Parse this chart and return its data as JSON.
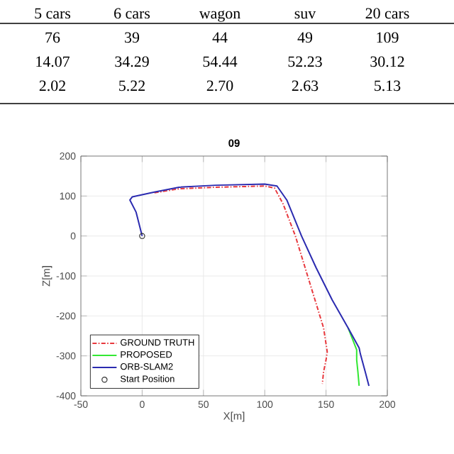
{
  "chart_data": {
    "type": "line",
    "title": "09",
    "xlabel": "X[m]",
    "ylabel": "Z[m]",
    "xlim": [
      -50,
      200
    ],
    "xticks": [
      -50,
      0,
      50,
      100,
      150,
      200
    ],
    "ylim": [
      -400,
      200
    ],
    "yticks": [
      -400,
      -300,
      -200,
      -100,
      0,
      100,
      200
    ],
    "grid": true,
    "legend": "bottom left",
    "series": [
      {
        "name": "GROUND TRUTH",
        "color": "#e8383d",
        "line_style": "dashed",
        "x": [
          10,
          30,
          60,
          100,
          108,
          115,
          125,
          135,
          143,
          148,
          151,
          150,
          148,
          147
        ],
        "values": [
          108,
          118,
          122,
          125,
          120,
          80,
          0,
          -100,
          -180,
          -230,
          -290,
          -310,
          -340,
          -370
        ]
      },
      {
        "name": "PROPOSED",
        "color": "#33e833",
        "line_style": "solid",
        "x": [
          168,
          175,
          175,
          176,
          177
        ],
        "values": [
          -230,
          -285,
          -310,
          -340,
          -375
        ]
      },
      {
        "name": "ORB-SLAM2",
        "color": "#2b2bb0",
        "line_style": "solid",
        "x": [
          0,
          -5,
          -10,
          -8,
          10,
          30,
          60,
          100,
          110,
          118,
          130,
          142,
          155,
          168,
          177,
          178,
          182,
          185
        ],
        "values": [
          0,
          60,
          90,
          98,
          110,
          122,
          127,
          130,
          125,
          90,
          0,
          -80,
          -160,
          -230,
          -280,
          -295,
          -340,
          -375
        ]
      },
      {
        "name": "Start Position",
        "type": "scatter",
        "marker": "circle",
        "color": "#333333",
        "x": [
          0
        ],
        "values": [
          0
        ]
      }
    ],
    "annotations": [
      "5 cars",
      "6 cars",
      "wagon",
      "suv",
      "20 cars",
      "76",
      "39",
      "44",
      "49",
      "109",
      "14.07",
      "34.29",
      "54.44",
      "52.23",
      "30.12",
      "2.02",
      "5.22",
      "2.70",
      "2.63",
      "5.13"
    ]
  }
}
